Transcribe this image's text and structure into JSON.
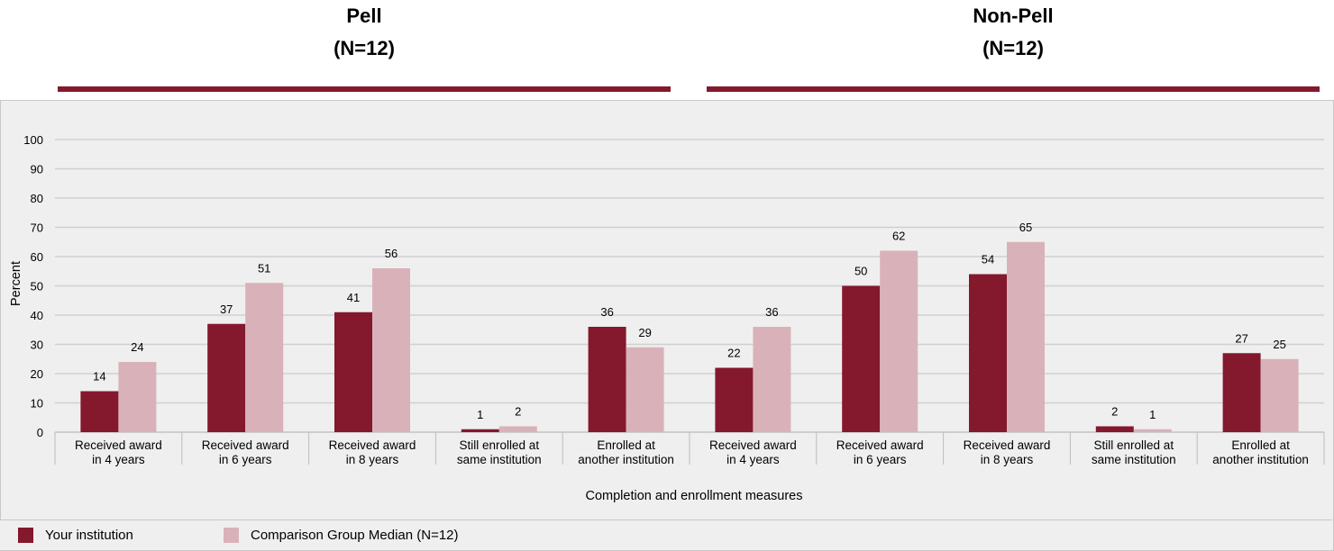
{
  "groups": [
    {
      "title": "Pell",
      "n_label": "(N=12)"
    },
    {
      "title": "Non-Pell",
      "n_label": "(N=12)"
    }
  ],
  "colors": {
    "institution": "#84182d",
    "comparison": "#d9b2b9",
    "rule": "#84182d",
    "panel": "#efefef",
    "grid": "#d0d0d0"
  },
  "legend": {
    "institution_label": "Your institution",
    "comparison_label": "Comparison Group Median (N=12)"
  },
  "chart_data": {
    "type": "bar",
    "ylabel": "Percent",
    "xlabel": "Completion and enrollment measures",
    "ylim": [
      0,
      100
    ],
    "yticks": [
      0,
      10,
      20,
      30,
      40,
      50,
      60,
      70,
      80,
      90,
      100
    ],
    "grid": true,
    "legend_position": "bottom",
    "categories": [
      [
        "Received award",
        "in 4 years"
      ],
      [
        "Received award",
        "in 6 years"
      ],
      [
        "Received award",
        "in 8 years"
      ],
      [
        "Still enrolled at",
        "same institution"
      ],
      [
        "Enrolled at",
        "another institution"
      ],
      [
        "Received award",
        "in 4 years"
      ],
      [
        "Received award",
        "in 6 years"
      ],
      [
        "Received award",
        "in 8 years"
      ],
      [
        "Still enrolled at",
        "same institution"
      ],
      [
        "Enrolled at",
        "another institution"
      ]
    ],
    "series": [
      {
        "name": "Your institution",
        "values": [
          14,
          37,
          41,
          1,
          36,
          22,
          50,
          54,
          2,
          27
        ]
      },
      {
        "name": "Comparison Group Median (N=12)",
        "values": [
          24,
          51,
          56,
          2,
          29,
          36,
          62,
          65,
          1,
          25
        ]
      }
    ]
  }
}
